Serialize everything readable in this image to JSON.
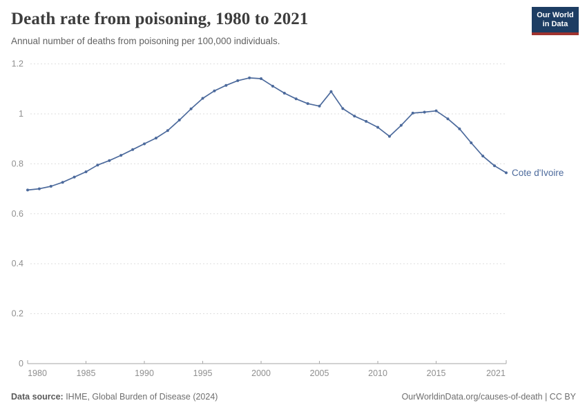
{
  "header": {
    "title": "Death rate from poisoning, 1980 to 2021",
    "subtitle": "Annual number of deaths from poisoning per 100,000 individuals."
  },
  "logo": {
    "line1": "Our World",
    "line2": "in Data"
  },
  "chart_data": {
    "type": "line",
    "title": "Death rate from poisoning, 1980 to 2021",
    "xlabel": "",
    "ylabel": "",
    "ylim": [
      0,
      1.2
    ],
    "yticks": [
      0,
      0.2,
      0.4,
      0.6,
      0.8,
      1,
      1.2
    ],
    "xticks": [
      1980,
      1985,
      1990,
      1995,
      2000,
      2005,
      2010,
      2015,
      2021
    ],
    "grid": "horizontal-dashed",
    "legend_position": "end-of-line-label",
    "x": [
      1980,
      1981,
      1982,
      1983,
      1984,
      1985,
      1986,
      1987,
      1988,
      1989,
      1990,
      1991,
      1992,
      1993,
      1994,
      1995,
      1996,
      1997,
      1998,
      1999,
      2000,
      2001,
      2002,
      2003,
      2004,
      2005,
      2006,
      2007,
      2008,
      2009,
      2010,
      2011,
      2012,
      2013,
      2014,
      2015,
      2016,
      2017,
      2018,
      2019,
      2020,
      2021
    ],
    "series": [
      {
        "name": "Cote d'Ivoire",
        "color": "#4c6a9c",
        "values": [
          0.695,
          0.7,
          0.71,
          0.726,
          0.747,
          0.768,
          0.795,
          0.813,
          0.834,
          0.857,
          0.88,
          0.903,
          0.933,
          0.975,
          1.02,
          1.062,
          1.092,
          1.114,
          1.133,
          1.144,
          1.141,
          1.111,
          1.083,
          1.06,
          1.041,
          1.031,
          1.089,
          1.021,
          0.991,
          0.97,
          0.946,
          0.91,
          0.954,
          1.003,
          1.007,
          1.012,
          0.98,
          0.94,
          0.884,
          0.831,
          0.792,
          0.764
        ]
      }
    ]
  },
  "footer": {
    "datasource_label": "Data source:",
    "datasource_value": " IHME, Global Burden of Disease (2024)",
    "attribution": "OurWorldinData.org/causes-of-death | CC BY"
  },
  "colors": {
    "line": "#4c6a9c",
    "grid": "#dddddd",
    "axis": "#a6a6a6",
    "tick_text": "#8f8f8f",
    "logo_bg": "#1d3d63",
    "logo_accent": "#a0332f"
  }
}
